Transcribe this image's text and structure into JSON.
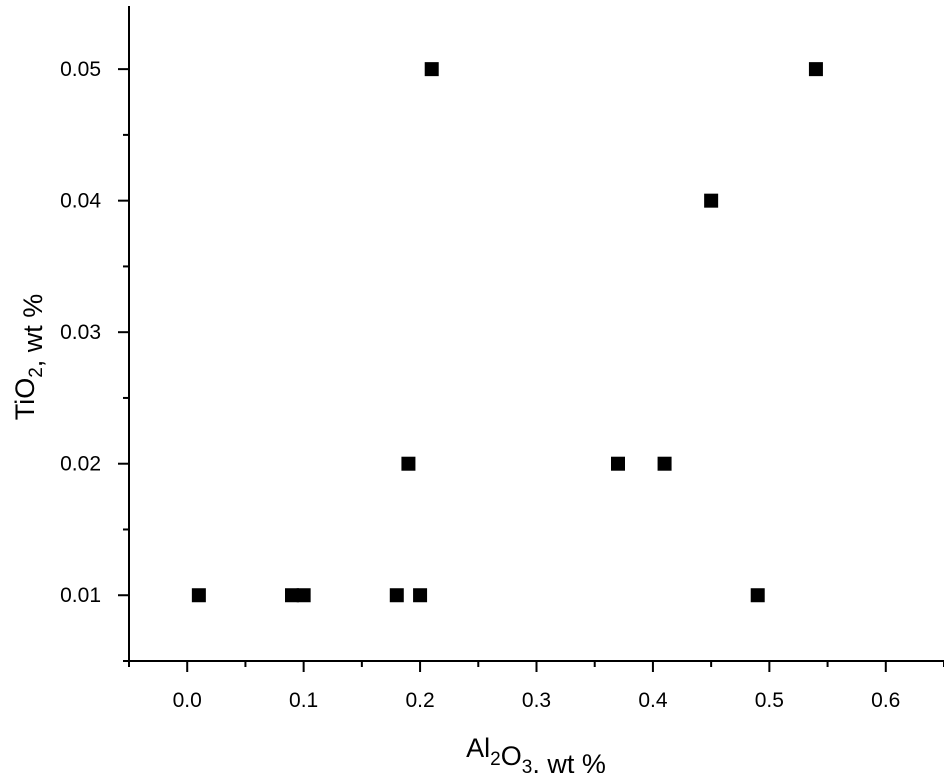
{
  "chart_data": {
    "type": "scatter",
    "xlabel": {
      "parts": [
        {
          "text": "Al"
        },
        {
          "text": "2",
          "sub": true
        },
        {
          "text": "O"
        },
        {
          "text": "3",
          "sub": true
        },
        {
          "text": ", wt %"
        }
      ]
    },
    "ylabel": {
      "parts": [
        {
          "text": "TiO"
        },
        {
          "text": "2",
          "sub": true
        },
        {
          "text": ", wt %"
        }
      ]
    },
    "xlim": [
      -0.05,
      0.65
    ],
    "ylim": [
      0.005,
      0.0548
    ],
    "x_ticks": [
      0.0,
      0.1,
      0.2,
      0.3,
      0.4,
      0.5,
      0.6
    ],
    "x_tick_labels": [
      "0.0",
      "0.1",
      "0.2",
      "0.3",
      "0.4",
      "0.5",
      "0.6"
    ],
    "y_ticks": [
      0.01,
      0.02,
      0.03,
      0.04,
      0.05
    ],
    "y_tick_labels": [
      "0.01",
      "0.02",
      "0.03",
      "0.04",
      "0.05"
    ],
    "grid": false,
    "marker": "square",
    "marker_color": "#000000",
    "points": [
      {
        "x": 0.01,
        "y": 0.01
      },
      {
        "x": 0.09,
        "y": 0.01
      },
      {
        "x": 0.1,
        "y": 0.01
      },
      {
        "x": 0.18,
        "y": 0.01
      },
      {
        "x": 0.19,
        "y": 0.02
      },
      {
        "x": 0.2,
        "y": 0.01
      },
      {
        "x": 0.21,
        "y": 0.05
      },
      {
        "x": 0.37,
        "y": 0.02
      },
      {
        "x": 0.41,
        "y": 0.02
      },
      {
        "x": 0.45,
        "y": 0.04
      },
      {
        "x": 0.49,
        "y": 0.01
      },
      {
        "x": 0.54,
        "y": 0.05
      }
    ]
  }
}
